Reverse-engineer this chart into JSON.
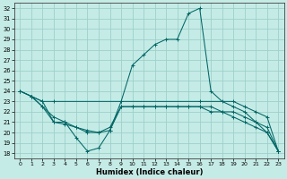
{
  "xlabel": "Humidex (Indice chaleur)",
  "bg_color": "#c5ebe6",
  "grid_color": "#9dd0ca",
  "line_color": "#006666",
  "xlim": [
    -0.5,
    23.5
  ],
  "ylim": [
    17.5,
    32.5
  ],
  "yticks": [
    18,
    19,
    20,
    21,
    22,
    23,
    24,
    25,
    26,
    27,
    28,
    29,
    30,
    31,
    32
  ],
  "xticks": [
    0,
    1,
    2,
    3,
    4,
    5,
    6,
    7,
    8,
    9,
    10,
    11,
    12,
    13,
    14,
    15,
    16,
    17,
    18,
    19,
    20,
    21,
    22,
    23
  ],
  "curve1": {
    "x": [
      0,
      1,
      2,
      3,
      4,
      5,
      6,
      7,
      8,
      9,
      10,
      11,
      12,
      13,
      14,
      15,
      16,
      17,
      18,
      19,
      20,
      21,
      22,
      23
    ],
    "y": [
      24.0,
      23.5,
      23.0,
      21.0,
      21.0,
      19.5,
      18.2,
      18.5,
      20.2,
      23.0,
      26.5,
      27.5,
      28.5,
      29.0,
      29.0,
      31.5,
      32.0,
      24.0,
      23.0,
      22.5,
      22.0,
      21.0,
      20.0,
      18.2
    ]
  },
  "curve2": {
    "x": [
      0,
      1,
      2,
      3,
      9,
      16,
      19,
      20,
      21,
      22,
      23
    ],
    "y": [
      24.0,
      23.5,
      23.0,
      23.0,
      23.0,
      23.0,
      23.0,
      22.5,
      22.0,
      21.5,
      18.2
    ]
  },
  "curve3": {
    "x": [
      1,
      2,
      3,
      4,
      5,
      6,
      7,
      8,
      9,
      10,
      11,
      12,
      13,
      14,
      15,
      16,
      17,
      18,
      19,
      20,
      21,
      22,
      23
    ],
    "y": [
      23.5,
      22.5,
      21.0,
      20.8,
      20.5,
      20.2,
      20.0,
      20.2,
      22.5,
      22.5,
      22.5,
      22.5,
      22.5,
      22.5,
      22.5,
      22.5,
      22.5,
      22.0,
      22.0,
      21.5,
      21.0,
      20.5,
      18.2
    ]
  },
  "curve4": {
    "x": [
      0,
      1,
      2,
      3,
      4,
      5,
      6,
      7,
      8,
      9,
      10,
      11,
      12,
      13,
      14,
      15,
      16,
      17,
      18,
      19,
      20,
      21,
      22,
      23
    ],
    "y": [
      24.0,
      23.5,
      22.5,
      21.5,
      21.0,
      20.5,
      20.0,
      20.0,
      20.5,
      22.5,
      22.5,
      22.5,
      22.5,
      22.5,
      22.5,
      22.5,
      22.5,
      22.0,
      22.0,
      21.5,
      21.0,
      20.5,
      20.0,
      18.2
    ]
  }
}
